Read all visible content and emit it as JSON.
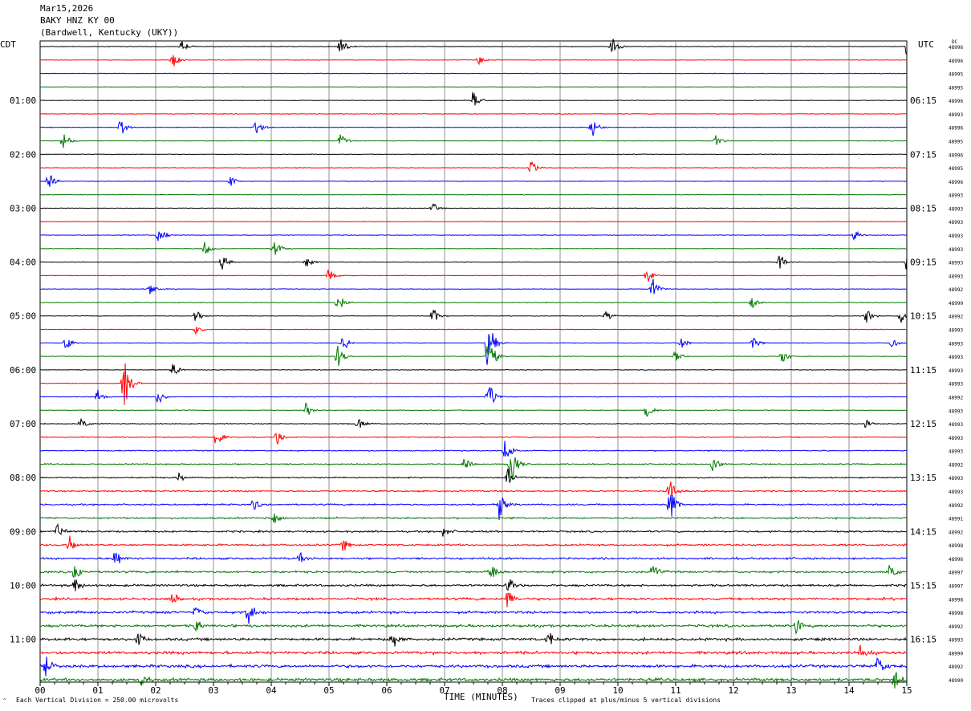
{
  "header": {
    "date": "Mar15,2026",
    "station": "BAKY HNZ KY 00",
    "location": "(Bardwell, Kentucky (UKY))"
  },
  "chart_data": {
    "type": "helicorder",
    "left_timezone": "CDT",
    "right_timezone": "UTC",
    "dc_label": "DC",
    "left_hour_labels": [
      "01:00",
      "02:00",
      "03:00",
      "04:00",
      "05:00",
      "06:00",
      "07:00",
      "08:00",
      "09:00",
      "10:00",
      "11:00"
    ],
    "right_hour_labels": [
      "06:15",
      "07:15",
      "08:15",
      "09:15",
      "10:15",
      "11:15",
      "12:15",
      "13:15",
      "14:15",
      "15:15",
      "16:15"
    ],
    "x_tick_labels": [
      "00",
      "01",
      "02",
      "03",
      "04",
      "05",
      "06",
      "07",
      "08",
      "09",
      "10",
      "11",
      "12",
      "13",
      "14",
      "15"
    ],
    "xlim": [
      0,
      15
    ],
    "xlabel": "TIME (MINUTES)",
    "trace_count": 48,
    "minutes_per_trace": 15,
    "trace_colors": [
      "#000000",
      "#ff0000",
      "#0000ff",
      "#007800"
    ],
    "dc_offsets": [
      "48996",
      "48996",
      "48995",
      "48995",
      "48996",
      "48993",
      "48996",
      "48995",
      "48996",
      "48995",
      "48996",
      "48993",
      "48993",
      "48993",
      "48993",
      "48993",
      "48993",
      "48993",
      "48992",
      "48990",
      "48992",
      "48993",
      "48993",
      "48993",
      "48993",
      "48993",
      "48992",
      "48993",
      "48993",
      "48993",
      "48993",
      "48992",
      "48993",
      "48993",
      "48992",
      "48991",
      "48992",
      "48998",
      "48996",
      "48997",
      "48997",
      "48998",
      "48998",
      "48992",
      "48993",
      "48990",
      "48992",
      "48990"
    ],
    "events": [
      {
        "trace": 0,
        "minute": 2.45,
        "amplitude": 0.55
      },
      {
        "trace": 0,
        "minute": 5.2,
        "amplitude": 0.8
      },
      {
        "trace": 0,
        "minute": 9.9,
        "amplitude": 0.9
      },
      {
        "trace": 0,
        "minute": 15.0,
        "amplitude": 0.9
      },
      {
        "trace": 1,
        "minute": 2.3,
        "amplitude": 0.7
      },
      {
        "trace": 1,
        "minute": 7.6,
        "amplitude": 0.4
      },
      {
        "trace": 4,
        "minute": 7.5,
        "amplitude": 0.9
      },
      {
        "trace": 6,
        "minute": 1.4,
        "amplitude": 0.8
      },
      {
        "trace": 6,
        "minute": 3.75,
        "amplitude": 0.8
      },
      {
        "trace": 6,
        "minute": 9.55,
        "amplitude": 0.9
      },
      {
        "trace": 7,
        "minute": 0.4,
        "amplitude": 1.0
      },
      {
        "trace": 7,
        "minute": 5.2,
        "amplitude": 0.6
      },
      {
        "trace": 7,
        "minute": 11.7,
        "amplitude": 0.5
      },
      {
        "trace": 9,
        "minute": 8.5,
        "amplitude": 0.6
      },
      {
        "trace": 10,
        "minute": 0.15,
        "amplitude": 0.8
      },
      {
        "trace": 10,
        "minute": 3.3,
        "amplitude": 0.4
      },
      {
        "trace": 12,
        "minute": 6.8,
        "amplitude": 0.5
      },
      {
        "trace": 14,
        "minute": 2.05,
        "amplitude": 1.0
      },
      {
        "trace": 14,
        "minute": 14.1,
        "amplitude": 0.5
      },
      {
        "trace": 15,
        "minute": 2.85,
        "amplitude": 0.6
      },
      {
        "trace": 15,
        "minute": 4.05,
        "amplitude": 0.9
      },
      {
        "trace": 16,
        "minute": 3.15,
        "amplitude": 0.8
      },
      {
        "trace": 16,
        "minute": 4.6,
        "amplitude": 0.5
      },
      {
        "trace": 16,
        "minute": 12.8,
        "amplitude": 0.8
      },
      {
        "trace": 16,
        "minute": 15.0,
        "amplitude": 1.0
      },
      {
        "trace": 17,
        "minute": 5.0,
        "amplitude": 0.7
      },
      {
        "trace": 17,
        "minute": 10.5,
        "amplitude": 0.8
      },
      {
        "trace": 18,
        "minute": 1.9,
        "amplitude": 0.5
      },
      {
        "trace": 18,
        "minute": 10.6,
        "amplitude": 1.0
      },
      {
        "trace": 19,
        "minute": 5.15,
        "amplitude": 1.0
      },
      {
        "trace": 19,
        "minute": 12.3,
        "amplitude": 0.6
      },
      {
        "trace": 20,
        "minute": 2.7,
        "amplitude": 0.6
      },
      {
        "trace": 20,
        "minute": 6.8,
        "amplitude": 0.7
      },
      {
        "trace": 20,
        "minute": 9.8,
        "amplitude": 0.5
      },
      {
        "trace": 20,
        "minute": 14.3,
        "amplitude": 0.6
      },
      {
        "trace": 20,
        "minute": 14.9,
        "amplitude": 0.6
      },
      {
        "trace": 21,
        "minute": 2.7,
        "amplitude": 0.4
      },
      {
        "trace": 22,
        "minute": 0.45,
        "amplitude": 0.6
      },
      {
        "trace": 22,
        "minute": 5.25,
        "amplitude": 0.7
      },
      {
        "trace": 22,
        "minute": 7.75,
        "amplitude": 2.5
      },
      {
        "trace": 22,
        "minute": 11.1,
        "amplitude": 0.5
      },
      {
        "trace": 22,
        "minute": 12.35,
        "amplitude": 0.6
      },
      {
        "trace": 22,
        "minute": 14.75,
        "amplitude": 0.5
      },
      {
        "trace": 23,
        "minute": 5.15,
        "amplitude": 1.0
      },
      {
        "trace": 23,
        "minute": 7.75,
        "amplitude": 2.5
      },
      {
        "trace": 23,
        "minute": 11.0,
        "amplitude": 0.6
      },
      {
        "trace": 23,
        "minute": 12.85,
        "amplitude": 0.7
      },
      {
        "trace": 24,
        "minute": 2.3,
        "amplitude": 0.6
      },
      {
        "trace": 25,
        "minute": 1.45,
        "amplitude": 2.5
      },
      {
        "trace": 26,
        "minute": 1.0,
        "amplitude": 0.6
      },
      {
        "trace": 26,
        "minute": 2.05,
        "amplitude": 0.7
      },
      {
        "trace": 26,
        "minute": 7.75,
        "amplitude": 1.5
      },
      {
        "trace": 27,
        "minute": 4.6,
        "amplitude": 0.8
      },
      {
        "trace": 27,
        "minute": 10.5,
        "amplitude": 0.7
      },
      {
        "trace": 28,
        "minute": 0.7,
        "amplitude": 0.6
      },
      {
        "trace": 28,
        "minute": 5.5,
        "amplitude": 0.8
      },
      {
        "trace": 28,
        "minute": 14.3,
        "amplitude": 0.5
      },
      {
        "trace": 29,
        "minute": 3.05,
        "amplitude": 0.8
      },
      {
        "trace": 29,
        "minute": 4.1,
        "amplitude": 0.6
      },
      {
        "trace": 30,
        "minute": 8.05,
        "amplitude": 1.2
      },
      {
        "trace": 31,
        "minute": 8.15,
        "amplitude": 2.0
      },
      {
        "trace": 31,
        "minute": 7.35,
        "amplitude": 0.6
      },
      {
        "trace": 31,
        "minute": 11.65,
        "amplitude": 0.8
      },
      {
        "trace": 32,
        "minute": 8.1,
        "amplitude": 0.8
      },
      {
        "trace": 32,
        "minute": 2.4,
        "amplitude": 0.4
      },
      {
        "trace": 33,
        "minute": 10.9,
        "amplitude": 1.2
      },
      {
        "trace": 34,
        "minute": 7.95,
        "amplitude": 1.5
      },
      {
        "trace": 34,
        "minute": 10.9,
        "amplitude": 1.5
      },
      {
        "trace": 34,
        "minute": 3.7,
        "amplitude": 0.6
      },
      {
        "trace": 35,
        "minute": 4.05,
        "amplitude": 0.6
      },
      {
        "trace": 36,
        "minute": 0.3,
        "amplitude": 0.8
      },
      {
        "trace": 36,
        "minute": 7.0,
        "amplitude": 0.8
      },
      {
        "trace": 37,
        "minute": 0.5,
        "amplitude": 0.8
      },
      {
        "trace": 37,
        "minute": 5.25,
        "amplitude": 0.7
      },
      {
        "trace": 38,
        "minute": 1.3,
        "amplitude": 1.0
      },
      {
        "trace": 38,
        "minute": 4.5,
        "amplitude": 0.7
      },
      {
        "trace": 39,
        "minute": 0.6,
        "amplitude": 0.8
      },
      {
        "trace": 39,
        "minute": 7.8,
        "amplitude": 0.8
      },
      {
        "trace": 39,
        "minute": 10.6,
        "amplitude": 0.8
      },
      {
        "trace": 39,
        "minute": 14.7,
        "amplitude": 0.8
      },
      {
        "trace": 40,
        "minute": 0.6,
        "amplitude": 0.8
      },
      {
        "trace": 40,
        "minute": 8.1,
        "amplitude": 0.8
      },
      {
        "trace": 41,
        "minute": 8.1,
        "amplitude": 1.1
      },
      {
        "trace": 41,
        "minute": 2.3,
        "amplitude": 0.6
      },
      {
        "trace": 42,
        "minute": 3.6,
        "amplitude": 1.2
      },
      {
        "trace": 42,
        "minute": 2.7,
        "amplitude": 0.6
      },
      {
        "trace": 43,
        "minute": 2.7,
        "amplitude": 0.6
      },
      {
        "trace": 43,
        "minute": 13.1,
        "amplitude": 0.8
      },
      {
        "trace": 44,
        "minute": 6.1,
        "amplitude": 1.0
      },
      {
        "trace": 44,
        "minute": 1.7,
        "amplitude": 0.7
      },
      {
        "trace": 44,
        "minute": 8.8,
        "amplitude": 0.7
      },
      {
        "trace": 45,
        "minute": 14.2,
        "amplitude": 0.8
      },
      {
        "trace": 46,
        "minute": 0.1,
        "amplitude": 1.0
      },
      {
        "trace": 46,
        "minute": 14.5,
        "amplitude": 1.0
      },
      {
        "trace": 47,
        "minute": 14.8,
        "amplitude": 1.0
      },
      {
        "trace": 47,
        "minute": 1.75,
        "amplitude": 0.7
      }
    ]
  },
  "footer": {
    "note_left": "Each Vertical Division =  250.00 microvolts",
    "note_right": "Traces clipped at plus/minus 5 vertical divisions"
  }
}
